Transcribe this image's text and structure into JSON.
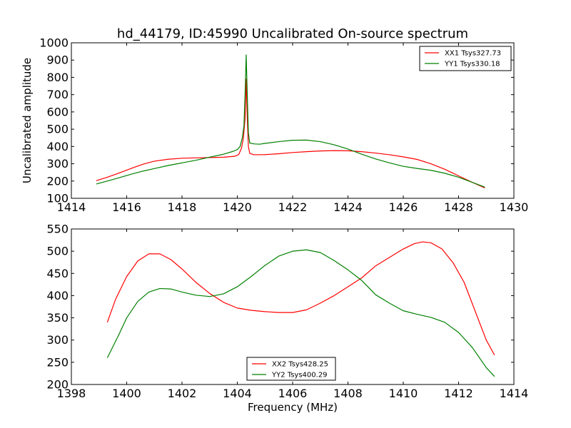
{
  "figure": {
    "title": "hd_44179, ID:45990 Uncalibrated On-source spectrum",
    "ylabel": "Uncalibrated amplitude",
    "xlabel": "Frequency (MHz)"
  },
  "chart_data": [
    {
      "type": "line",
      "title": "hd_44179, ID:45990 Uncalibrated On-source spectrum",
      "xlabel": "",
      "ylabel": "Uncalibrated amplitude",
      "xlim": [
        1414,
        1430
      ],
      "ylim": [
        100,
        1000
      ],
      "xticks": [
        1414,
        1416,
        1418,
        1420,
        1422,
        1424,
        1426,
        1428,
        1430
      ],
      "yticks": [
        100,
        200,
        300,
        400,
        500,
        600,
        700,
        800,
        900,
        1000
      ],
      "grid": false,
      "legend_position": "top-right",
      "series": [
        {
          "name": "XX1 Tsys327.73",
          "color": "#ff0000",
          "points": [
            [
              1414.9,
              202
            ],
            [
              1415.3,
              222
            ],
            [
              1415.7,
              245
            ],
            [
              1416.2,
              275
            ],
            [
              1416.6,
              298
            ],
            [
              1417.0,
              315
            ],
            [
              1417.5,
              326
            ],
            [
              1418.0,
              332
            ],
            [
              1418.5,
              334
            ],
            [
              1419.0,
              336
            ],
            [
              1419.5,
              338
            ],
            [
              1419.9,
              343
            ],
            [
              1420.05,
              353
            ],
            [
              1420.15,
              390
            ],
            [
              1420.22,
              450
            ],
            [
              1420.28,
              560
            ],
            [
              1420.32,
              790
            ],
            [
              1420.36,
              560
            ],
            [
              1420.4,
              400
            ],
            [
              1420.45,
              360
            ],
            [
              1420.6,
              352
            ],
            [
              1421.0,
              353
            ],
            [
              1421.5,
              358
            ],
            [
              1422.0,
              365
            ],
            [
              1422.5,
              370
            ],
            [
              1423.0,
              374
            ],
            [
              1423.5,
              376
            ],
            [
              1424.0,
              375
            ],
            [
              1424.5,
              370
            ],
            [
              1425.0,
              362
            ],
            [
              1425.5,
              352
            ],
            [
              1426.0,
              340
            ],
            [
              1426.5,
              325
            ],
            [
              1427.0,
              300
            ],
            [
              1427.5,
              268
            ],
            [
              1428.0,
              230
            ],
            [
              1428.5,
              192
            ],
            [
              1428.95,
              160
            ]
          ]
        },
        {
          "name": "YY1 Tsys330.18",
          "color": "#008000",
          "points": [
            [
              1414.9,
              183
            ],
            [
              1415.3,
              200
            ],
            [
              1415.7,
              218
            ],
            [
              1416.2,
              241
            ],
            [
              1416.6,
              258
            ],
            [
              1417.0,
              272
            ],
            [
              1417.5,
              290
            ],
            [
              1418.0,
              305
            ],
            [
              1418.5,
              320
            ],
            [
              1419.0,
              338
            ],
            [
              1419.5,
              355
            ],
            [
              1419.85,
              372
            ],
            [
              1420.0,
              382
            ],
            [
              1420.1,
              400
            ],
            [
              1420.18,
              450
            ],
            [
              1420.24,
              520
            ],
            [
              1420.28,
              700
            ],
            [
              1420.32,
              930
            ],
            [
              1420.36,
              700
            ],
            [
              1420.4,
              480
            ],
            [
              1420.45,
              420
            ],
            [
              1420.6,
              415
            ],
            [
              1420.8,
              413
            ],
            [
              1421.0,
              418
            ],
            [
              1421.5,
              428
            ],
            [
              1422.0,
              436
            ],
            [
              1422.5,
              437
            ],
            [
              1423.0,
              428
            ],
            [
              1423.5,
              410
            ],
            [
              1424.0,
              385
            ],
            [
              1424.5,
              355
            ],
            [
              1425.0,
              328
            ],
            [
              1425.5,
              305
            ],
            [
              1426.0,
              285
            ],
            [
              1426.5,
              273
            ],
            [
              1427.0,
              262
            ],
            [
              1427.5,
              245
            ],
            [
              1428.0,
              222
            ],
            [
              1428.5,
              192
            ],
            [
              1428.95,
              165
            ]
          ]
        }
      ]
    },
    {
      "type": "line",
      "title": "",
      "xlabel": "Frequency (MHz)",
      "ylabel": "",
      "xlim": [
        1398,
        1414
      ],
      "ylim": [
        200,
        550
      ],
      "xticks": [
        1398,
        1400,
        1402,
        1404,
        1406,
        1408,
        1410,
        1412,
        1414
      ],
      "yticks": [
        200,
        250,
        300,
        350,
        400,
        450,
        500,
        550
      ],
      "grid": false,
      "legend_position": "bottom-center",
      "series": [
        {
          "name": "XX2 Tsys428.25",
          "color": "#ff0000",
          "points": [
            [
              1399.3,
              340
            ],
            [
              1399.6,
              392
            ],
            [
              1400.0,
              443
            ],
            [
              1400.4,
              478
            ],
            [
              1400.8,
              494
            ],
            [
              1401.2,
              494
            ],
            [
              1401.6,
              481
            ],
            [
              1402.0,
              460
            ],
            [
              1402.5,
              430
            ],
            [
              1403.0,
              405
            ],
            [
              1403.5,
              385
            ],
            [
              1404.0,
              372
            ],
            [
              1404.5,
              367
            ],
            [
              1405.0,
              364
            ],
            [
              1405.5,
              362
            ],
            [
              1406.0,
              362
            ],
            [
              1406.5,
              368
            ],
            [
              1407.0,
              383
            ],
            [
              1407.5,
              400
            ],
            [
              1408.0,
              420
            ],
            [
              1408.5,
              440
            ],
            [
              1409.0,
              467
            ],
            [
              1409.5,
              486
            ],
            [
              1410.0,
              505
            ],
            [
              1410.4,
              517
            ],
            [
              1410.7,
              521
            ],
            [
              1411.0,
              519
            ],
            [
              1411.4,
              505
            ],
            [
              1411.8,
              474
            ],
            [
              1412.2,
              430
            ],
            [
              1412.6,
              365
            ],
            [
              1413.0,
              300
            ],
            [
              1413.3,
              266
            ]
          ]
        },
        {
          "name": "YY2 Tsys400.29",
          "color": "#008000",
          "points": [
            [
              1399.3,
              260
            ],
            [
              1399.7,
              310
            ],
            [
              1400.0,
              350
            ],
            [
              1400.4,
              387
            ],
            [
              1400.8,
              408
            ],
            [
              1401.2,
              416
            ],
            [
              1401.6,
              415
            ],
            [
              1402.0,
              408
            ],
            [
              1402.5,
              401
            ],
            [
              1403.0,
              398
            ],
            [
              1403.5,
              404
            ],
            [
              1404.0,
              420
            ],
            [
              1404.5,
              443
            ],
            [
              1405.0,
              468
            ],
            [
              1405.5,
              489
            ],
            [
              1406.0,
              500
            ],
            [
              1406.5,
              503
            ],
            [
              1407.0,
              497
            ],
            [
              1407.5,
              479
            ],
            [
              1408.0,
              458
            ],
            [
              1408.5,
              434
            ],
            [
              1409.0,
              402
            ],
            [
              1409.5,
              383
            ],
            [
              1410.0,
              366
            ],
            [
              1410.5,
              358
            ],
            [
              1411.0,
              351
            ],
            [
              1411.5,
              340
            ],
            [
              1412.0,
              317
            ],
            [
              1412.5,
              283
            ],
            [
              1413.0,
              238
            ],
            [
              1413.3,
              218
            ]
          ]
        }
      ]
    }
  ]
}
